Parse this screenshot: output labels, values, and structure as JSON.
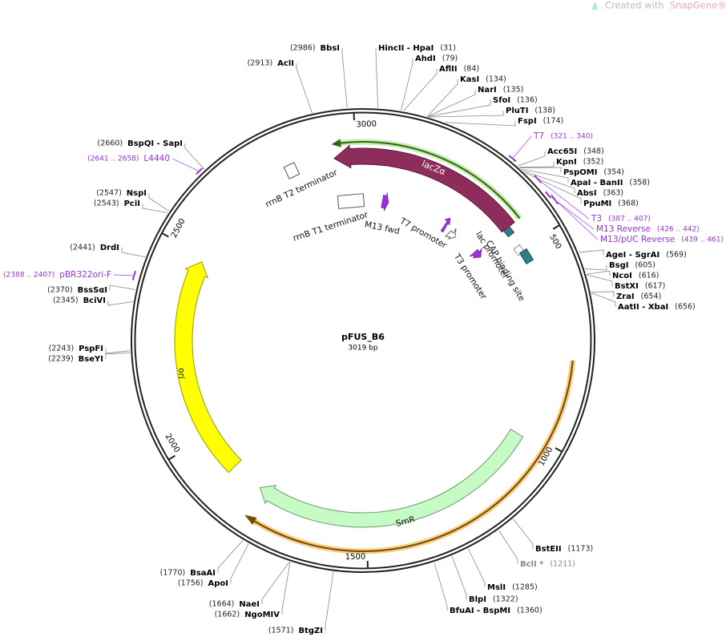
{
  "watermark": {
    "prefix": "Created with",
    "brand": "SnapGene®"
  },
  "plasmid": {
    "name": "pFUS_B6",
    "size": "3019 bp"
  },
  "ticks": [
    "500",
    "1000",
    "1500",
    "2000",
    "2500",
    "3000"
  ],
  "features": [
    "lacZα",
    "lac promoter",
    "CAP binding site",
    "T3 promoter",
    "T7 promoter",
    "M13 fwd",
    "rrnB T1 terminator",
    "rrnB T2 terminator",
    "ori",
    "SmR"
  ],
  "sites": [
    {
      "label": "BbsI",
      "position": "(2986)"
    },
    {
      "label": "AclI",
      "position": "(2913)"
    },
    {
      "label": "HincII - HpaI",
      "position": "(31)"
    },
    {
      "label": "AhdI",
      "position": "(79)"
    },
    {
      "label": "AflII",
      "position": "(84)"
    },
    {
      "label": "KasI",
      "position": "(134)"
    },
    {
      "label": "NarI",
      "position": "(135)"
    },
    {
      "label": "SfoI",
      "position": "(136)"
    },
    {
      "label": "PluTI",
      "position": "(138)"
    },
    {
      "label": "FspI",
      "position": "(174)"
    },
    {
      "label": "Acc65I",
      "position": "(348)"
    },
    {
      "label": "KpnI",
      "position": "(352)"
    },
    {
      "label": "PspOMI",
      "position": "(354)"
    },
    {
      "label": "ApaI - BanII",
      "position": "(358)"
    },
    {
      "label": "AbsI",
      "position": "(363)"
    },
    {
      "label": "PpuMI",
      "position": "(368)"
    },
    {
      "label": "AgeI - SgrAI",
      "position": "(569)"
    },
    {
      "label": "BsgI",
      "position": "(605)"
    },
    {
      "label": "NcoI",
      "position": "(616)"
    },
    {
      "label": "BstXI",
      "position": "(617)"
    },
    {
      "label": "ZraI",
      "position": "(654)"
    },
    {
      "label": "AatII - XbaI",
      "position": "(656)"
    },
    {
      "label": "BstEII",
      "position": "(1173)"
    },
    {
      "label": "BclI *",
      "position": "(1211)"
    },
    {
      "label": "MslI",
      "position": "(1285)"
    },
    {
      "label": "BlpI",
      "position": "(1322)"
    },
    {
      "label": "BfuAI - BspMI",
      "position": "(1360)"
    },
    {
      "label": "BtgZI",
      "position": "(1571)"
    },
    {
      "label": "NaeI",
      "position": "(1664)"
    },
    {
      "label": "NgoMIV",
      "position": "(1662)"
    },
    {
      "label": "BsaAI",
      "position": "(1770)"
    },
    {
      "label": "ApoI",
      "position": "(1756)"
    },
    {
      "label": "PspFI",
      "position": "(2243)"
    },
    {
      "label": "BseYI",
      "position": "(2239)"
    },
    {
      "label": "BssSαI",
      "position": "(2370)"
    },
    {
      "label": "BciVI",
      "position": "(2345)"
    },
    {
      "label": "DrdI",
      "position": "(2441)"
    },
    {
      "label": "NspI",
      "position": "(2547)"
    },
    {
      "label": "PciI",
      "position": "(2543)"
    },
    {
      "label": "BspQI - SapI",
      "position": "(2660)"
    }
  ],
  "primers": [
    {
      "label": "T7",
      "range": "(321 .. 340)"
    },
    {
      "label": "T3",
      "range": "(387 .. 407)"
    },
    {
      "label": "M13 Reverse",
      "range": "(426 .. 442)"
    },
    {
      "label": "M13/pUC Reverse",
      "range": "(439 .. 461)"
    },
    {
      "label": "L4440",
      "range": "(2641 .. 2658)"
    },
    {
      "label": "pBR322ori-F",
      "range": "(2388 .. 2407)"
    }
  ]
}
